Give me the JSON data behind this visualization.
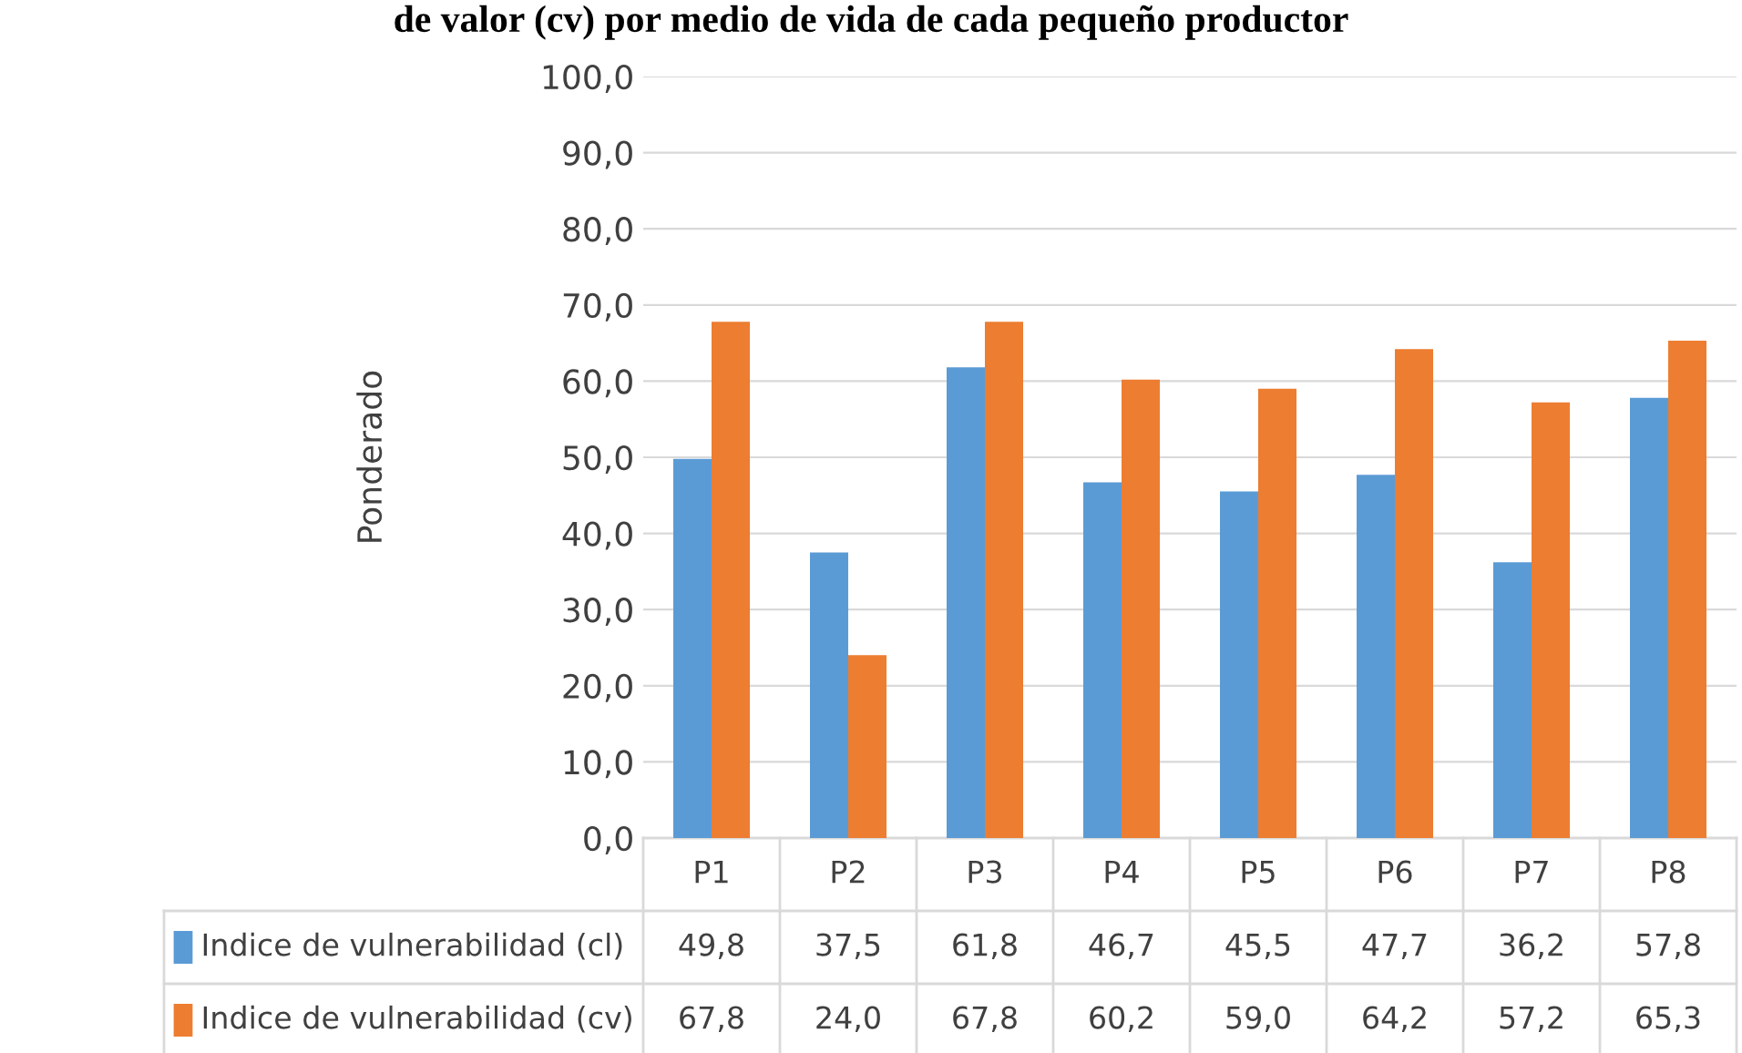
{
  "chart_data": {
    "type": "bar",
    "title": "de valor (cv) por medio de vida de cada pequeño productor",
    "ylabel": "Ponderado",
    "categories": [
      "P1",
      "P2",
      "P3",
      "P4",
      "P5",
      "P6",
      "P7",
      "P8"
    ],
    "series": [
      {
        "name": "Indice de vulnerabilidad (cl)",
        "color": "#5b9bd5",
        "values": [
          49.8,
          37.5,
          61.8,
          46.7,
          45.5,
          47.7,
          36.2,
          57.8
        ],
        "value_labels": [
          "49,8",
          "37,5",
          "61,8",
          "46,7",
          "45,5",
          "47,7",
          "36,2",
          "57,8"
        ]
      },
      {
        "name": "Indice de vulnerabilidad (cv)",
        "color": "#ed7d31",
        "values": [
          67.8,
          24.0,
          67.8,
          60.2,
          59.0,
          64.2,
          57.2,
          65.3
        ],
        "value_labels": [
          "67,8",
          "24,0",
          "67,8",
          "60,2",
          "59,0",
          "64,2",
          "57,2",
          "65,3"
        ]
      }
    ],
    "ylim": [
      0,
      100
    ],
    "yticks": [
      {
        "value": 0,
        "label": "0,0"
      },
      {
        "value": 10,
        "label": "10,0"
      },
      {
        "value": 20,
        "label": "20,0"
      },
      {
        "value": 30,
        "label": "30,0"
      },
      {
        "value": 40,
        "label": "40,0"
      },
      {
        "value": 50,
        "label": "50,0"
      },
      {
        "value": 60,
        "label": "60,0"
      },
      {
        "value": 70,
        "label": "70,0"
      },
      {
        "value": 80,
        "label": "80,0"
      },
      {
        "value": 90,
        "label": "90,0"
      },
      {
        "value": 100,
        "label": "100,0"
      }
    ],
    "grid": "y",
    "legend": "bottom"
  }
}
